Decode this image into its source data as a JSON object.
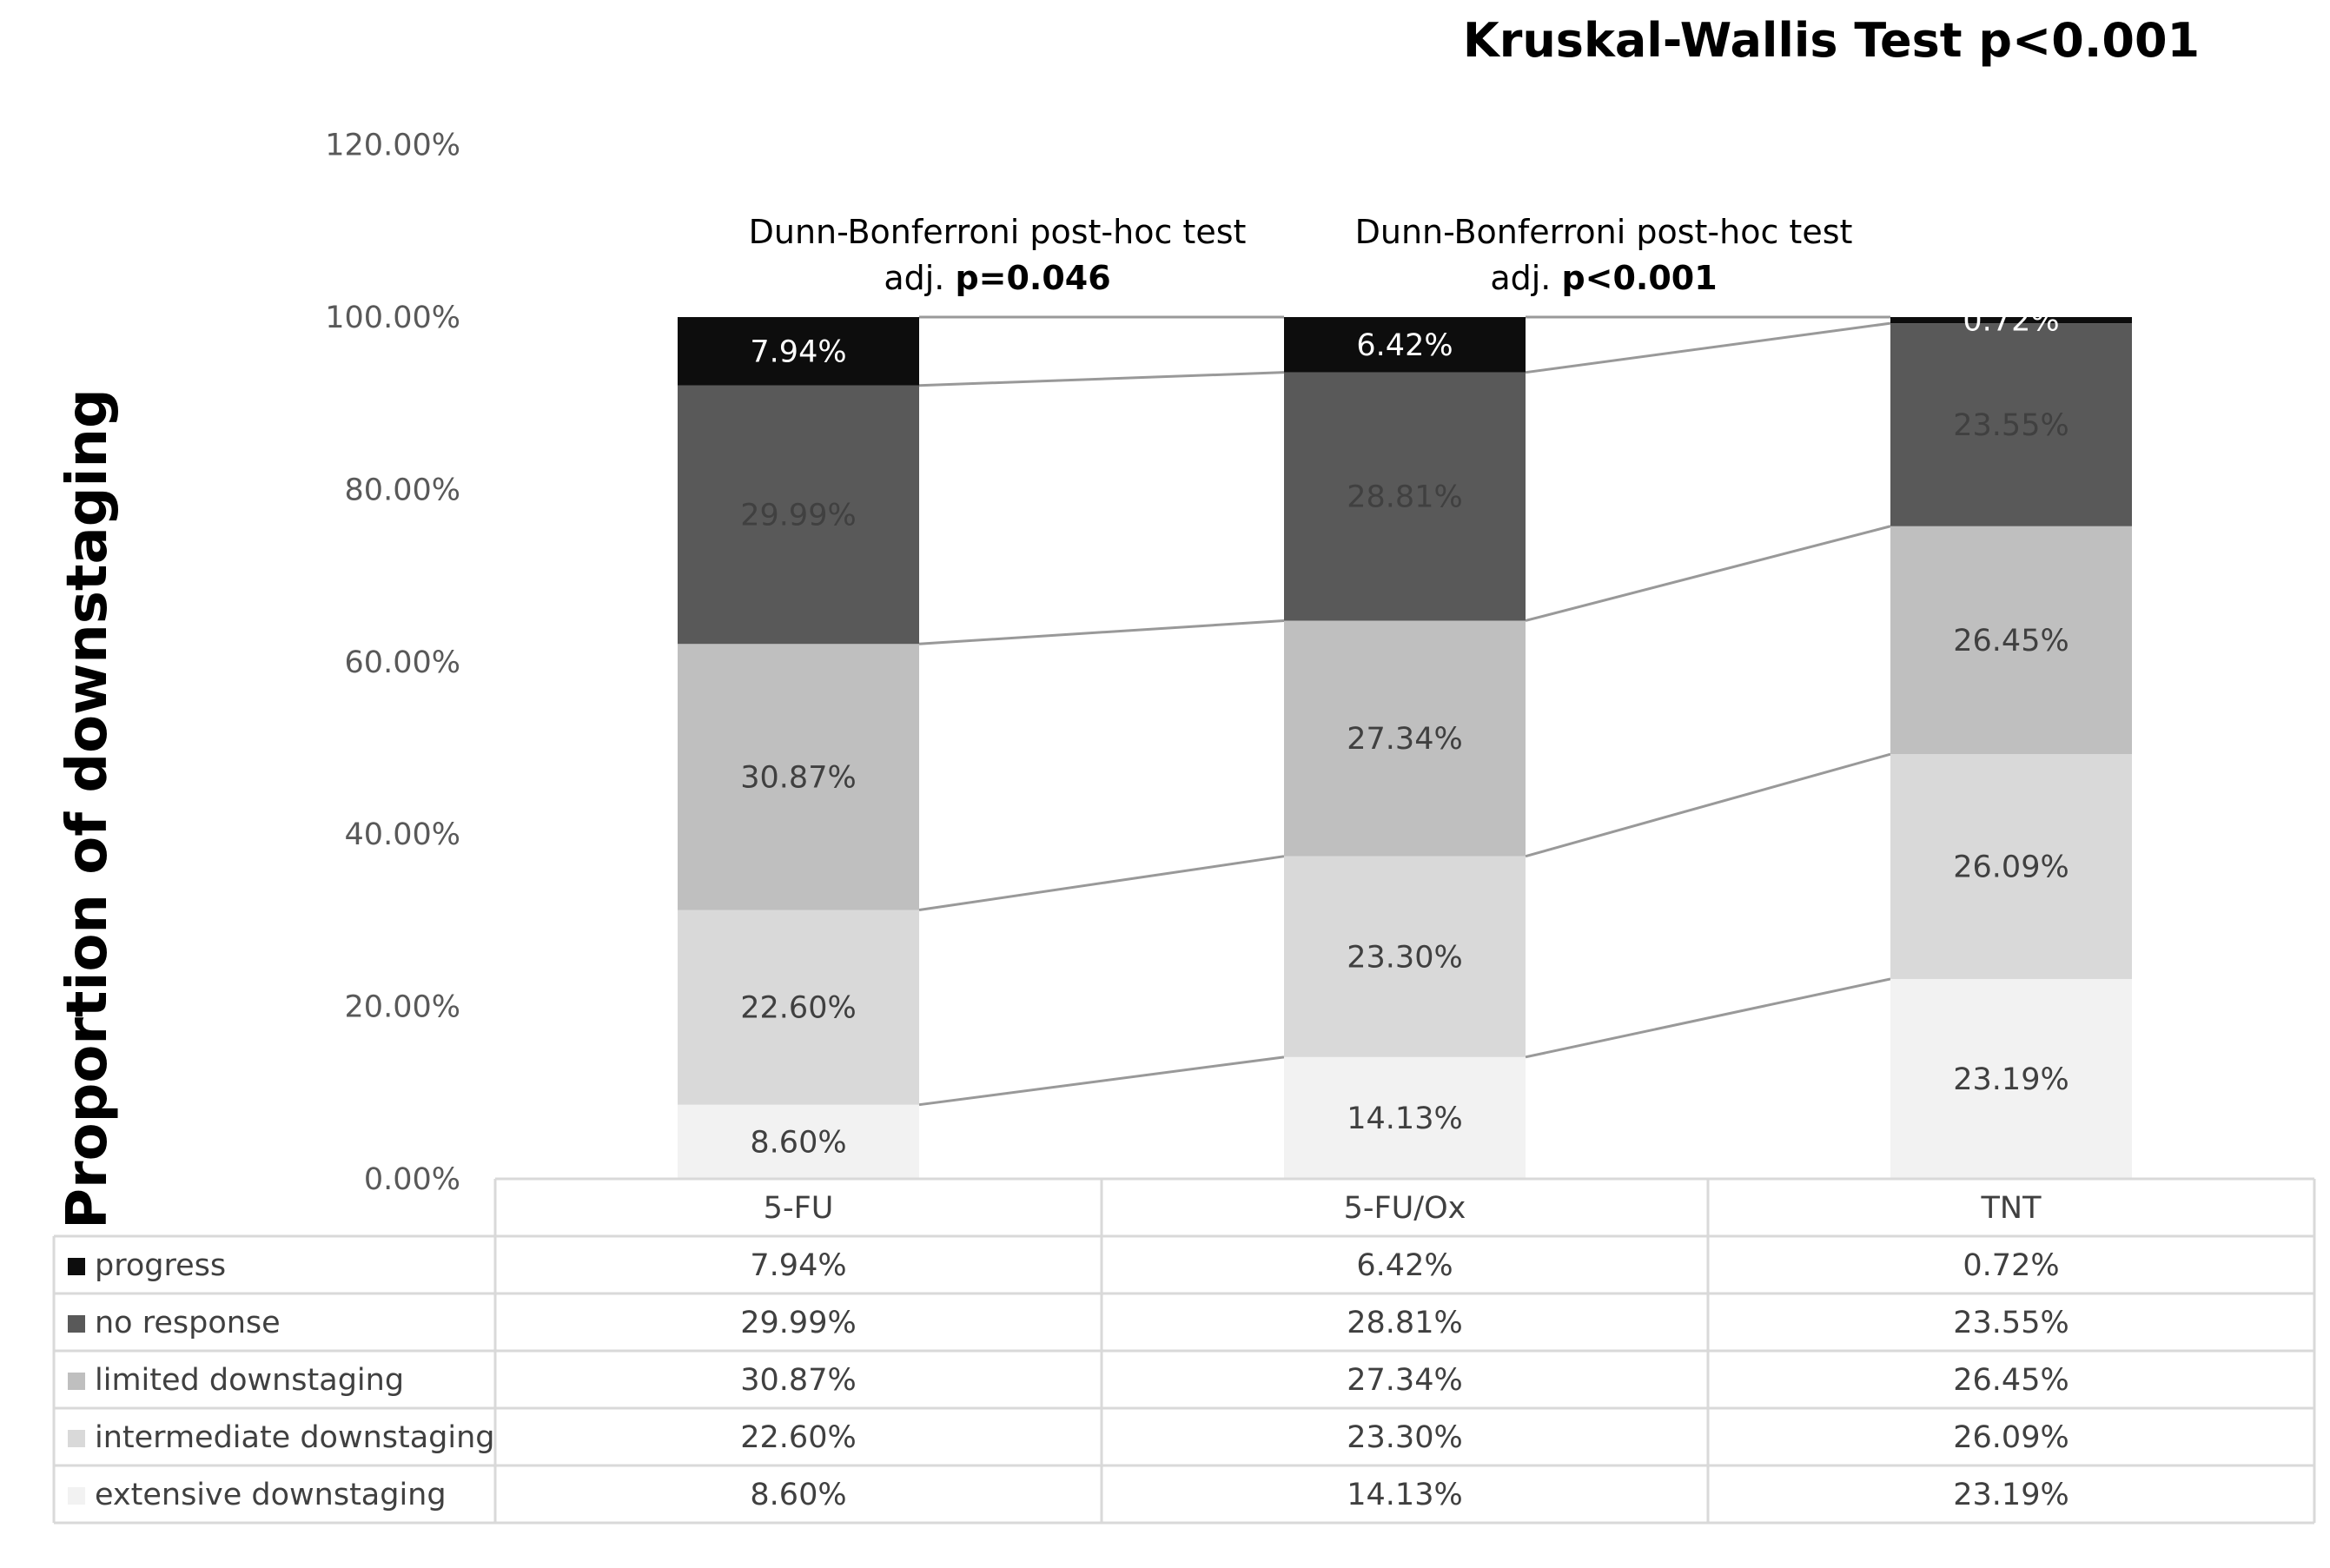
{
  "chart_data": {
    "type": "bar",
    "stacked": true,
    "title": "Kruskal-Wallis Test p<0.001",
    "ylabel": "Proportion of downstaging",
    "xlabel": "",
    "ylim": [
      0,
      120
    ],
    "yticks": [
      "0.00%",
      "20.00%",
      "40.00%",
      "60.00%",
      "80.00%",
      "100.00%",
      "120.00%"
    ],
    "categories": [
      "5-FU",
      "5-FU/Ox",
      "TNT"
    ],
    "series": [
      {
        "name": "extensive downstaging",
        "color": "#f2f2f2",
        "label_color": "#404040",
        "values": [
          8.6,
          14.13,
          23.19
        ],
        "labels": [
          "8.60%",
          "14.13%",
          "23.19%"
        ]
      },
      {
        "name": "intermediate downstaging",
        "color": "#d9d9d9",
        "label_color": "#404040",
        "values": [
          22.6,
          23.3,
          26.09
        ],
        "labels": [
          "22.60%",
          "23.30%",
          "26.09%"
        ]
      },
      {
        "name": "limited downstaging",
        "color": "#bfbfbf",
        "label_color": "#404040",
        "values": [
          30.87,
          27.34,
          26.45
        ],
        "labels": [
          "30.87%",
          "27.34%",
          "26.45%"
        ]
      },
      {
        "name": "no response",
        "color": "#595959",
        "label_color": "#404040",
        "values": [
          29.99,
          28.81,
          23.55
        ],
        "labels": [
          "29.99%",
          "28.81%",
          "23.55%"
        ]
      },
      {
        "name": "progress",
        "color": "#0d0d0d",
        "label_color": "#ffffff",
        "values": [
          7.94,
          6.42,
          0.72
        ],
        "labels": [
          "7.94%",
          "6.42%",
          "0.72%"
        ]
      }
    ],
    "annotations": [
      {
        "line1": "Dunn-Bonferroni post-hoc test",
        "prefix": "adj. ",
        "bold": "p=0.046"
      },
      {
        "line1": "Dunn-Bonferroni post-hoc test",
        "prefix": "adj. ",
        "bold": "p<0.001"
      }
    ],
    "table_order": [
      "progress",
      "no response",
      "limited downstaging",
      "intermediate downstaging",
      "extensive downstaging"
    ]
  }
}
